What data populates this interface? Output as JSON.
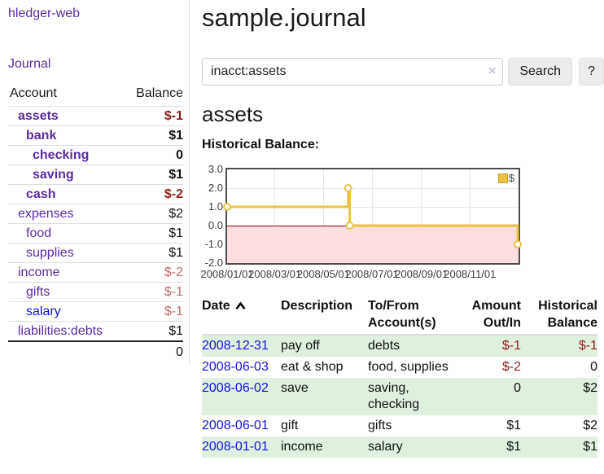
{
  "app": {
    "title": "hledger-web"
  },
  "colors": {
    "link_purple": "#5a2ca0",
    "link_blue": "#1414e0",
    "negative_strong": "#8f1d1d",
    "negative_dim": "#bd6d6d",
    "row_green": "#dff0df",
    "chart_line": "#edc240",
    "chart_negative_fill": "#fbdede",
    "chart_zero_line": "#8b0000"
  },
  "icons": {
    "sort_asc": "caret-up",
    "clear_search": "×"
  },
  "sidebar": {
    "journal_link": "Journal",
    "account_col": "Account",
    "balance_col": "Balance",
    "accounts": [
      {
        "name": "assets",
        "balance": "$-1",
        "indent": 1,
        "bold": true,
        "blue": false
      },
      {
        "name": "bank",
        "balance": "$1",
        "indent": 2,
        "bold": true,
        "blue": false
      },
      {
        "name": "checking",
        "balance": "0",
        "indent": 3,
        "bold": true,
        "blue": false
      },
      {
        "name": "saving",
        "balance": "$1",
        "indent": 3,
        "bold": true,
        "blue": false
      },
      {
        "name": "cash",
        "balance": "$-2",
        "indent": 2,
        "bold": true,
        "blue": false
      },
      {
        "name": "expenses",
        "balance": "$2",
        "indent": 1,
        "bold": false,
        "blue": false
      },
      {
        "name": "food",
        "balance": "$1",
        "indent": 2,
        "bold": false,
        "blue": false
      },
      {
        "name": "supplies",
        "balance": "$1",
        "indent": 2,
        "bold": false,
        "blue": false
      },
      {
        "name": "income",
        "balance": "$-2",
        "indent": 1,
        "bold": false,
        "blue": false
      },
      {
        "name": "gifts",
        "balance": "$-1",
        "indent": 2,
        "bold": false,
        "blue": false
      },
      {
        "name": "salary",
        "balance": "$-1",
        "indent": 2,
        "bold": false,
        "blue": true
      },
      {
        "name": "liabilities:debts",
        "balance": "$1",
        "indent": 1,
        "bold": false,
        "blue": false
      }
    ],
    "total": "0"
  },
  "header": {
    "title": "sample.journal"
  },
  "search": {
    "value": "inacct:assets",
    "clear_icon": "×",
    "button": "Search",
    "help_button": "?"
  },
  "main": {
    "account_title": "assets",
    "chart_label": "Historical Balance:"
  },
  "chart_data": {
    "type": "line",
    "step": true,
    "title": "Historical Balance:",
    "series": [
      {
        "name": "$",
        "color": "#edc240",
        "points": [
          [
            "2008-01-01",
            1
          ],
          [
            "2008-06-01",
            2
          ],
          [
            "2008-06-03",
            0
          ],
          [
            "2008-12-31",
            -1
          ]
        ]
      }
    ],
    "xlim": [
      "2008-01-01",
      "2009-01-01"
    ],
    "ylim": [
      -2,
      3
    ],
    "yticks": [
      "3.0",
      "2.0",
      "1.0",
      "0.0",
      "-1.0",
      "-2.0"
    ],
    "xticks": [
      "2008/01/01",
      "2008/03/01",
      "2008/05/01",
      "2008/07/01",
      "2008/09/01",
      "2008/11/01"
    ],
    "grid": true,
    "legend_position": "top-right",
    "marker": "circle",
    "negative_region_fill": "#fbdede",
    "zero_line_color": "#8b0000"
  },
  "register": {
    "columns": {
      "date": "Date",
      "description": "Description",
      "tofrom_line1": "To/From",
      "tofrom_line2": "Account(s)",
      "amount_line1": "Amount",
      "amount_line2": "Out/In",
      "balance_line1": "Historical",
      "balance_line2": "Balance"
    },
    "rows": [
      {
        "date": "2008-12-31",
        "description": "pay off",
        "accounts": "debts",
        "amount": "$-1",
        "balance": "$-1"
      },
      {
        "date": "2008-06-03",
        "description": "eat & shop",
        "accounts": "food, supplies",
        "amount": "$-2",
        "balance": "0"
      },
      {
        "date": "2008-06-02",
        "description": "save",
        "accounts": "saving, checking",
        "amount": "0",
        "balance": "$2"
      },
      {
        "date": "2008-06-01",
        "description": "gift",
        "accounts": "gifts",
        "amount": "$1",
        "balance": "$2"
      },
      {
        "date": "2008-01-01",
        "description": "income",
        "accounts": "salary",
        "amount": "$1",
        "balance": "$1"
      }
    ]
  }
}
